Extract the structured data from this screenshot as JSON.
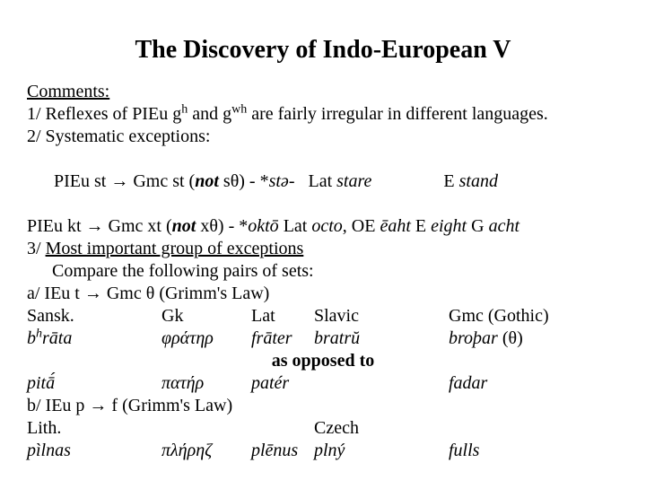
{
  "title": "The Discovery of Indo-European V",
  "comments_label": "Comments:",
  "line1_a": "1/ Reflexes of PIEu g",
  "line1_sup1": "h",
  "line1_b": " and g",
  "line1_sup2": "wh",
  "line1_c": " are fairly irregular in different languages.",
  "line2": "2/ Systematic exceptions:",
  "line3_a": "PIEu st → Gmc st (",
  "line3_not": "not",
  "line3_b": " sθ) - *",
  "line3_i1": "stə",
  "line3_c": "-   Lat ",
  "line3_i2": "stare",
  "line3_d": "                E ",
  "line3_i3": "stand",
  "line4_a": "PIEu kt → Gmc xt (",
  "line4_not": "not",
  "line4_b": " xθ) - *",
  "line4_i1": "oktō",
  "line4_c": " Lat ",
  "line4_i2": "octo",
  "line4_d": ", OE ",
  "line4_i3": "ēaht",
  "line4_e": " E ",
  "line4_i4": "eight",
  "line4_f": "  G ",
  "line4_i5": "acht",
  "line5": "3/ ",
  "line5_u": "Most important group of exceptions",
  "line6": "Compare the following pairs of sets:",
  "line7": "a/ IEu t → Gmc θ (Grimm's Law)",
  "hdr": {
    "c1": "Sansk.",
    "c2": "Gk",
    "c3": "Lat",
    "c4": "Slavic",
    "c5": "Gmc (Gothic)"
  },
  "r1": {
    "c1a": "b",
    "c1sup": "h",
    "c1b": "rāta",
    "c2": "φράτηρ",
    "c3": "frāter",
    "c4": "bratrŭ",
    "c5a": "broþar",
    "c5b": " (θ)"
  },
  "opposed": "as opposed to",
  "r2": {
    "c1": "pitā́",
    "c2": "πατήρ",
    "c3": "patér",
    "c4": "",
    "c5": "fadar"
  },
  "line_b": " b/ IEu p → f (Grimm's Law)",
  "hdr2": {
    "c1": "Lith.",
    "c4": "Czech"
  },
  "r3": {
    "c1": "pìlnas",
    "c2": "πλήρηζ",
    "c3": "plēnus",
    "c4": "plný",
    "c5": "fulls"
  }
}
